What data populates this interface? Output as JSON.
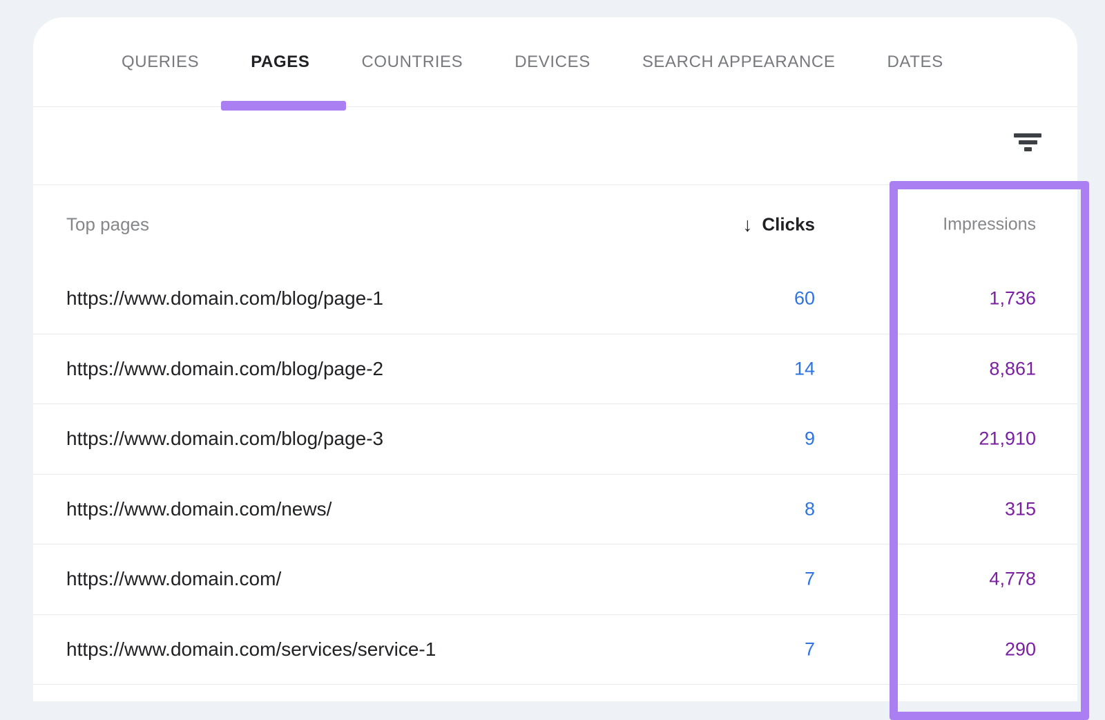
{
  "tabs": [
    {
      "label": "QUERIES",
      "active": false
    },
    {
      "label": "PAGES",
      "active": true
    },
    {
      "label": "COUNTRIES",
      "active": false
    },
    {
      "label": "DEVICES",
      "active": false
    },
    {
      "label": "SEARCH APPEARANCE",
      "active": false
    },
    {
      "label": "DATES",
      "active": false
    }
  ],
  "toolbar": {
    "filter_icon": "filter-icon"
  },
  "table": {
    "columns": {
      "pages": "Top pages",
      "clicks": "Clicks",
      "impressions": "Impressions"
    },
    "sort": {
      "column": "Clicks",
      "direction": "desc",
      "arrow": "↓"
    },
    "rows": [
      {
        "url": "https://www.domain.com/blog/page-1",
        "clicks": "60",
        "impressions": "1,736"
      },
      {
        "url": "https://www.domain.com/blog/page-2",
        "clicks": "14",
        "impressions": "8,861"
      },
      {
        "url": "https://www.domain.com/blog/page-3",
        "clicks": "9",
        "impressions": "21,910"
      },
      {
        "url": "https://www.domain.com/news/",
        "clicks": "8",
        "impressions": "315"
      },
      {
        "url": "https://www.domain.com/",
        "clicks": "7",
        "impressions": "4,778"
      },
      {
        "url": "https://www.domain.com/services/service-1",
        "clicks": "7",
        "impressions": "290"
      }
    ]
  },
  "annotations": {
    "active_tab_underline": "PAGES",
    "highlighted_column": "Impressions"
  },
  "colors": {
    "accent_purple": "#aa7ff2",
    "clicks_blue": "#2f73e0",
    "impressions_purple": "#7b1fa2",
    "background": "#eef1f6",
    "card": "#ffffff",
    "inactive_tab_gray": "#77797e",
    "header_gray": "#85878b",
    "text_dark": "#202124"
  }
}
